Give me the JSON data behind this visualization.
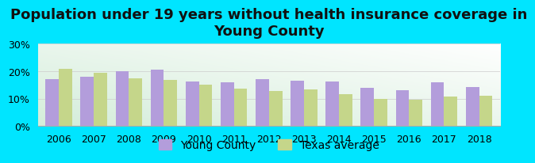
{
  "title": "Population under 19 years without health insurance coverage in\nYoung County",
  "years": [
    2006,
    2007,
    2008,
    2009,
    2010,
    2011,
    2012,
    2013,
    2014,
    2015,
    2016,
    2017,
    2018
  ],
  "young_county": [
    17.0,
    18.0,
    20.0,
    20.5,
    16.2,
    15.8,
    17.0,
    16.5,
    16.3,
    14.0,
    13.0,
    16.0,
    14.2
  ],
  "texas_avg": [
    20.8,
    19.3,
    17.5,
    16.8,
    15.2,
    13.7,
    12.8,
    13.4,
    11.5,
    10.0,
    9.7,
    10.8,
    10.9
  ],
  "bar_color_young": "#b39ddb",
  "bar_color_texas": "#c5d68a",
  "bg_color_outer": "#00e5ff",
  "ylim": [
    0,
    30
  ],
  "yticks": [
    0,
    10,
    20,
    30
  ],
  "ytick_labels": [
    "0%",
    "10%",
    "20%",
    "30%"
  ],
  "legend_young": "Young County",
  "legend_texas": "Texas average",
  "title_fontsize": 13,
  "tick_fontsize": 9,
  "legend_fontsize": 10
}
